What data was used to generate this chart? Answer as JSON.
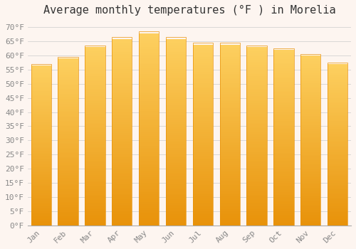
{
  "title": "Average monthly temperatures (°F ) in Morelia",
  "months": [
    "Jan",
    "Feb",
    "Mar",
    "Apr",
    "May",
    "Jun",
    "Jul",
    "Aug",
    "Sep",
    "Oct",
    "Nov",
    "Dec"
  ],
  "values": [
    57.0,
    59.5,
    63.5,
    66.5,
    68.5,
    66.5,
    64.5,
    64.5,
    63.5,
    62.5,
    60.5,
    57.5
  ],
  "bar_color_top": "#F5A623",
  "bar_color_bottom": "#F5C842",
  "bar_edge_color": "#E8920A",
  "background_color": "#fdf5f0",
  "plot_bg_color": "#fdf5f0",
  "grid_color": "#cccccc",
  "ylim": [
    0,
    72
  ],
  "title_fontsize": 11,
  "tick_fontsize": 8,
  "font_family": "monospace"
}
